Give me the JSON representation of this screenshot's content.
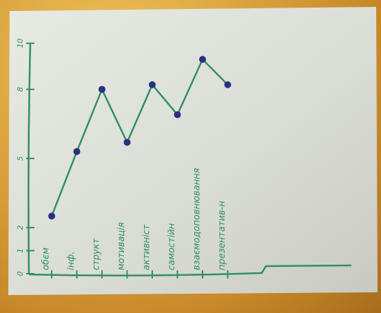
{
  "chart_data": {
    "type": "line",
    "categories": [
      "обєм",
      "інф.",
      "структ",
      "мотивація",
      "активніст",
      "самостійн",
      "взаємодоповнювання",
      "презентатив-н"
    ],
    "values": [
      2.5,
      5.3,
      8.0,
      5.7,
      8.2,
      6.9,
      9.3,
      8.2
    ],
    "color": "#2f8f63",
    "marker_color": "#2b2f7e",
    "ylim": [
      0,
      10.5
    ],
    "yticks": [
      0,
      1,
      2,
      5,
      8,
      10
    ]
  }
}
